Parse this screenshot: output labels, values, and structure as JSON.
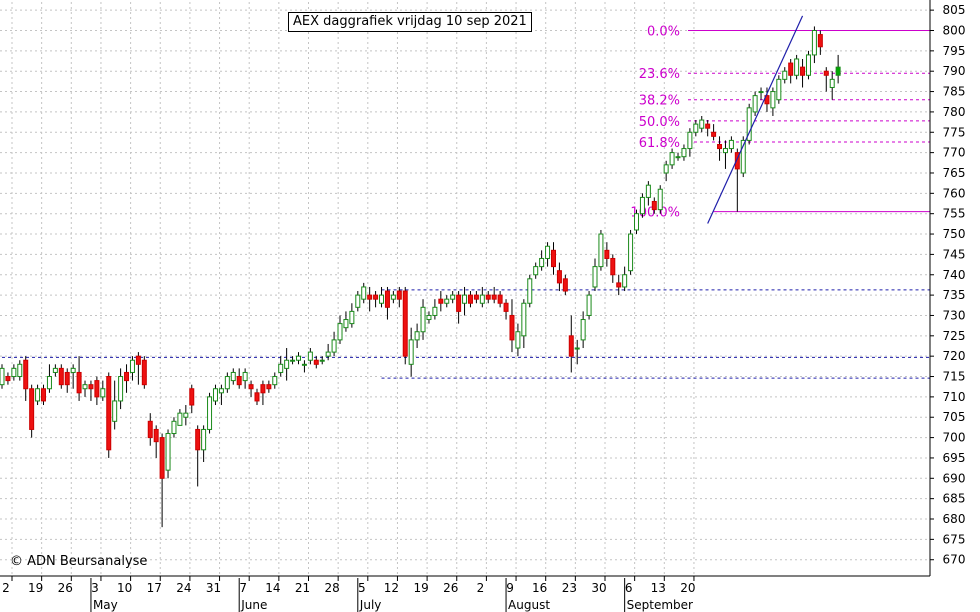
{
  "chart_data": {
    "type": "candlestick",
    "title": "AEX daggrafiek vrijdag 10 sep 2021",
    "copyright": "© ADN Beursanalyse",
    "y_range": [
      666,
      807
    ],
    "y_ticks": [
      670,
      675,
      680,
      685,
      690,
      695,
      700,
      705,
      710,
      715,
      720,
      725,
      730,
      735,
      740,
      745,
      750,
      755,
      760,
      765,
      770,
      775,
      780,
      785,
      790,
      795,
      800,
      805
    ],
    "x_tick_labels": [
      "2",
      "19",
      "26",
      "3",
      "10",
      "17",
      "24",
      "31",
      "7",
      "14",
      "21",
      "28",
      "5",
      "12",
      "19",
      "26",
      "2",
      "9",
      "16",
      "23",
      "30",
      "6",
      "13",
      "20"
    ],
    "month_labels": [
      "May",
      "June",
      "July",
      "August",
      "September"
    ],
    "fibonacci": {
      "high": 800.0,
      "low": 755.5,
      "levels": [
        {
          "label": "0.0%",
          "value": 800.0
        },
        {
          "label": "23.6%",
          "value": 789.5
        },
        {
          "label": "38.2%",
          "value": 783.0
        },
        {
          "label": "50.0%",
          "value": 777.8
        },
        {
          "label": "61.8%",
          "value": 772.6
        },
        {
          "label": "100.0%",
          "value": 755.5
        }
      ]
    },
    "support_lines": [
      {
        "value": 719.7,
        "from_session": 0
      },
      {
        "value": 736.3,
        "from_session": 64
      },
      {
        "value": 714.6,
        "from_session": 64
      }
    ],
    "trend_line": {
      "from": {
        "session": 119,
        "value": 752.6
      },
      "to": {
        "session": 135,
        "value": 803.6
      }
    },
    "candles": [
      [
        713.0,
        717.0,
        718.0,
        712.0
      ],
      [
        715.0,
        714.0,
        716.0,
        713.0
      ],
      [
        715.0,
        717.0,
        718.0,
        714.0
      ],
      [
        715.0,
        718.0,
        719.0,
        714.0
      ],
      [
        719.0,
        712.0,
        720.0,
        709.0
      ],
      [
        712.0,
        702.0,
        713.0,
        700.0
      ],
      [
        709.0,
        712.0,
        713.0,
        708.0
      ],
      [
        712.0,
        709.0,
        713.0,
        708.0
      ],
      [
        712.0,
        715.0,
        718.0,
        711.0
      ],
      [
        716.0,
        717.0,
        718.0,
        715.0
      ],
      [
        717.0,
        713.0,
        718.0,
        712.0
      ],
      [
        716.0,
        713.0,
        717.0,
        711.0
      ],
      [
        716.0,
        717.0,
        718.0,
        712.0
      ],
      [
        716.0,
        711.0,
        720.0,
        709.0
      ],
      [
        712.0,
        713.0,
        714.0,
        710.0
      ],
      [
        713.0,
        712.0,
        714.0,
        709.0
      ],
      [
        714.0,
        710.0,
        715.0,
        708.0
      ],
      [
        710.0,
        712.0,
        714.0,
        709.0
      ],
      [
        715.0,
        697.0,
        716.0,
        695.0
      ],
      [
        704.0,
        709.0,
        714.0,
        702.0
      ],
      [
        709.0,
        715.0,
        717.0,
        707.0
      ],
      [
        716.0,
        714.0,
        718.0,
        711.0
      ],
      [
        716.0,
        719.0,
        720.0,
        714.0
      ],
      [
        720.0,
        718.0,
        721.0,
        713.0
      ],
      [
        719.0,
        713.0,
        720.0,
        712.0
      ],
      [
        704.0,
        700.0,
        706.0,
        698.0
      ],
      [
        702.0,
        699.0,
        703.0,
        695.0
      ],
      [
        700.0,
        690.0,
        701.0,
        678.0
      ],
      [
        692.0,
        701.0,
        702.0,
        690.0
      ],
      [
        701.0,
        704.0,
        705.0,
        700.0
      ],
      [
        703.0,
        706.0,
        707.0,
        703.0
      ],
      [
        705.0,
        706.0,
        708.0,
        703.0
      ],
      [
        712.0,
        708.0,
        713.0,
        706.0
      ],
      [
        702.0,
        697.0,
        703.0,
        688.0
      ],
      [
        697.0,
        702.0,
        703.0,
        694.0
      ],
      [
        702.0,
        710.0,
        711.0,
        701.0
      ],
      [
        709.0,
        712.0,
        713.0,
        708.0
      ],
      [
        711.0,
        712.0,
        713.0,
        708.0
      ],
      [
        712.0,
        715.0,
        716.0,
        711.0
      ],
      [
        714.0,
        716.0,
        717.0,
        713.0
      ],
      [
        715.0,
        713.0,
        717.0,
        712.0
      ],
      [
        714.0,
        716.0,
        717.0,
        712.0
      ],
      [
        713.0,
        712.0,
        714.0,
        710.0
      ],
      [
        711.0,
        709.0,
        712.0,
        708.0
      ],
      [
        713.0,
        711.0,
        714.0,
        708.0
      ],
      [
        713.0,
        712.0,
        714.0,
        711.0
      ],
      [
        713.0,
        715.0,
        716.0,
        712.0
      ],
      [
        716.0,
        718.0,
        720.0,
        715.0
      ],
      [
        717.0,
        719.0,
        722.0,
        714.0
      ],
      [
        719.0,
        719.0,
        720.0,
        718.0
      ],
      [
        719.0,
        720.0,
        721.0,
        718.0
      ],
      [
        718.0,
        718.0,
        719.0,
        716.0
      ],
      [
        719.0,
        721.0,
        722.0,
        718.0
      ],
      [
        719.0,
        718.0,
        720.0,
        717.0
      ],
      [
        719.0,
        719.0,
        720.0,
        718.0
      ],
      [
        720.0,
        721.0,
        723.0,
        719.0
      ],
      [
        721.0,
        724.0,
        726.0,
        720.0
      ],
      [
        724.0,
        728.0,
        730.0,
        723.0
      ],
      [
        727.0,
        729.0,
        731.0,
        726.0
      ],
      [
        728.0,
        731.0,
        733.0,
        727.0
      ],
      [
        732.0,
        735.0,
        736.0,
        731.0
      ],
      [
        734.0,
        737.0,
        738.0,
        733.0
      ],
      [
        735.0,
        734.0,
        737.0,
        731.0
      ],
      [
        735.0,
        734.0,
        736.0,
        732.0
      ],
      [
        733.0,
        735.0,
        737.0,
        732.0
      ],
      [
        736.0,
        732.0,
        737.0,
        729.0
      ],
      [
        734.0,
        735.0,
        736.0,
        733.0
      ],
      [
        736.0,
        734.0,
        737.0,
        732.0
      ],
      [
        736.0,
        720.0,
        737.0,
        718.0
      ],
      [
        718.0,
        724.0,
        727.0,
        715.0
      ],
      [
        724.0,
        726.0,
        728.0,
        722.0
      ],
      [
        726.0,
        732.0,
        734.0,
        724.0
      ],
      [
        729.0,
        730.0,
        731.0,
        728.0
      ],
      [
        730.0,
        732.0,
        734.0,
        729.0
      ],
      [
        734.0,
        733.0,
        736.0,
        731.0
      ],
      [
        733.0,
        734.0,
        735.0,
        732.0
      ],
      [
        734.0,
        735.0,
        736.0,
        733.0
      ],
      [
        735.0,
        731.0,
        736.0,
        728.0
      ],
      [
        733.0,
        735.0,
        737.0,
        730.0
      ],
      [
        735.0,
        733.0,
        736.0,
        732.0
      ],
      [
        735.0,
        734.0,
        736.0,
        733.0
      ],
      [
        733.0,
        735.0,
        737.0,
        732.0
      ],
      [
        735.0,
        734.0,
        736.0,
        733.0
      ],
      [
        735.0,
        734.0,
        737.0,
        733.0
      ],
      [
        735.0,
        733.0,
        736.0,
        732.0
      ],
      [
        733.0,
        731.0,
        734.0,
        729.0
      ],
      [
        730.0,
        724.0,
        734.0,
        721.0
      ],
      [
        722.0,
        726.0,
        728.0,
        720.0
      ],
      [
        725.0,
        733.0,
        734.0,
        722.0
      ],
      [
        733.0,
        739.0,
        740.0,
        732.0
      ],
      [
        740.0,
        742.0,
        743.0,
        739.0
      ],
      [
        742.0,
        744.0,
        746.0,
        741.0
      ],
      [
        744.0,
        747.0,
        748.0,
        742.0
      ],
      [
        746.0,
        742.0,
        748.0,
        740.0
      ],
      [
        741.0,
        738.0,
        743.0,
        736.0
      ],
      [
        739.0,
        736.0,
        740.0,
        735.0
      ],
      [
        725.0,
        720.0,
        730.0,
        716.0
      ],
      [
        722.0,
        722.0,
        724.0,
        718.0
      ],
      [
        724.0,
        729.0,
        731.0,
        722.0
      ],
      [
        730.0,
        735.0,
        736.0,
        729.0
      ],
      [
        737.0,
        742.0,
        744.0,
        736.0
      ],
      [
        742.0,
        750.0,
        751.0,
        741.0
      ],
      [
        746.0,
        744.0,
        748.0,
        742.0
      ],
      [
        744.0,
        740.0,
        745.0,
        738.0
      ],
      [
        738.0,
        737.0,
        740.0,
        735.0
      ],
      [
        737.0,
        740.0,
        742.0,
        736.0
      ],
      [
        741.0,
        750.0,
        751.0,
        740.0
      ],
      [
        751.0,
        755.0,
        756.0,
        750.0
      ],
      [
        755.0,
        759.0,
        760.0,
        754.0
      ],
      [
        759.0,
        762.0,
        763.0,
        757.0
      ],
      [
        758.0,
        756.0,
        759.0,
        755.0
      ],
      [
        756.0,
        761.0,
        762.0,
        755.0
      ],
      [
        765.0,
        767.0,
        768.0,
        763.0
      ],
      [
        767.0,
        770.0,
        771.0,
        766.0
      ],
      [
        769.0,
        769.0,
        770.0,
        768.0
      ],
      [
        769.0,
        771.0,
        772.0,
        768.0
      ],
      [
        771.0,
        775.0,
        776.0,
        769.0
      ],
      [
        775.0,
        777.0,
        778.0,
        774.0
      ],
      [
        776.0,
        778.0,
        779.0,
        775.0
      ],
      [
        777.0,
        776.0,
        778.0,
        774.0
      ],
      [
        775.0,
        774.0,
        777.0,
        773.0
      ],
      [
        772.0,
        771.0,
        774.0,
        768.0
      ],
      [
        770.0,
        771.0,
        773.0,
        766.0
      ],
      [
        771.0,
        773.0,
        774.0,
        770.0
      ],
      [
        770.0,
        766.0,
        771.0,
        755.5
      ],
      [
        765.0,
        773.0,
        774.0,
        764.0
      ],
      [
        773.0,
        781.0,
        782.0,
        772.0
      ],
      [
        780.0,
        784.0,
        785.0,
        779.0
      ],
      [
        785.0,
        785.0,
        786.0,
        783.0
      ],
      [
        784.0,
        782.0,
        786.0,
        780.0
      ],
      [
        781.0,
        785.0,
        786.0,
        779.0
      ],
      [
        783.0,
        788.0,
        789.0,
        782.0
      ],
      [
        788.0,
        790.0,
        791.0,
        787.0
      ],
      [
        792.0,
        789.0,
        793.0,
        787.0
      ],
      [
        789.0,
        793.0,
        794.0,
        788.0
      ],
      [
        791.0,
        789.0,
        793.0,
        786.0
      ],
      [
        789.0,
        794.0,
        795.0,
        788.0
      ],
      [
        794.0,
        800.0,
        801.0,
        792.0
      ],
      [
        799.0,
        796.0,
        800.0,
        794.0
      ],
      [
        790.0,
        789.0,
        791.0,
        785.0
      ],
      [
        786.0,
        788.0,
        790.0,
        783.0
      ],
      [
        789.0,
        791.0,
        794.0,
        787.0
      ]
    ]
  }
}
